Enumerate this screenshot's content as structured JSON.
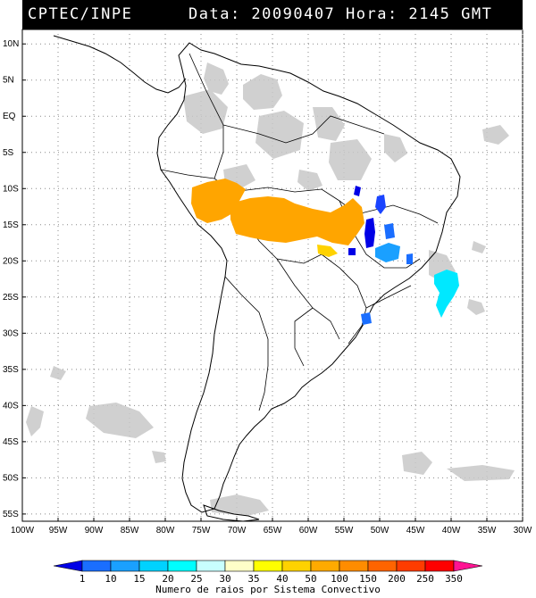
{
  "header": {
    "left": "CPTEC/INPE",
    "right": "Data: 20090407 Hora: 2145 GMT"
  },
  "map": {
    "lat_labels": [
      "10N",
      "5N",
      "EQ",
      "5S",
      "10S",
      "15S",
      "20S",
      "25S",
      "30S",
      "35S",
      "40S",
      "45S",
      "50S",
      "55S"
    ],
    "lon_labels": [
      "100W",
      "95W",
      "90W",
      "85W",
      "80W",
      "75W",
      "70W",
      "65W",
      "60W",
      "55W",
      "50W",
      "45W",
      "40W",
      "35W",
      "30W"
    ],
    "lat_range": [
      12,
      -56
    ],
    "lon_range": [
      -100,
      -30
    ],
    "grid": "dotted"
  },
  "legend": {
    "ticks": [
      "1",
      "10",
      "15",
      "20",
      "25",
      "30",
      "35",
      "40",
      "50",
      "100",
      "150",
      "200",
      "250",
      "350"
    ],
    "colors": [
      "#0000e6",
      "#1a6eff",
      "#1aa0ff",
      "#00d2ff",
      "#00ffff",
      "#c8ffff",
      "#ffffc8",
      "#ffff00",
      "#ffd200",
      "#ffaa00",
      "#ff8c00",
      "#ff6400",
      "#ff3c00",
      "#ff0000",
      "#ff1493"
    ],
    "caption": "Numero de raios por Sistema Convectivo"
  }
}
